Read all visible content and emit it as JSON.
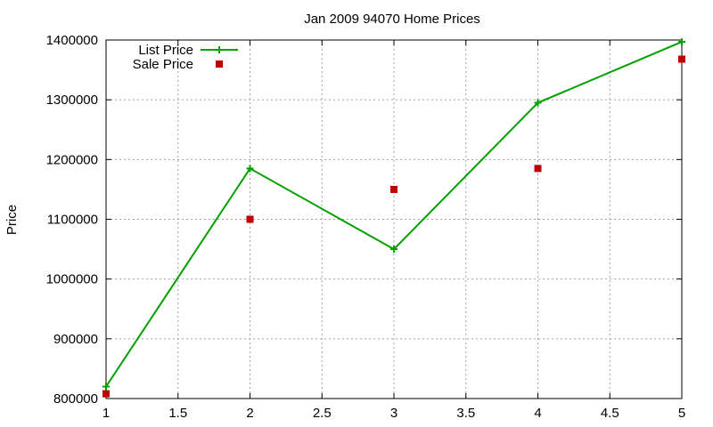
{
  "chart_data": {
    "type": "line",
    "title": "Jan 2009 94070 Home Prices",
    "xlabel": "",
    "ylabel": "Price",
    "xlim": [
      1,
      5
    ],
    "ylim": [
      800000,
      1400000
    ],
    "x_ticks": [
      1,
      1.5,
      2,
      2.5,
      3,
      3.5,
      4,
      4.5,
      5
    ],
    "x_tick_labels": [
      "1",
      "1.5",
      "2",
      "2.5",
      "3",
      "3.5",
      "4",
      "4.5",
      "5"
    ],
    "y_ticks": [
      800000,
      900000,
      1000000,
      1100000,
      1200000,
      1300000,
      1400000
    ],
    "y_tick_labels": [
      "800000",
      "900000",
      "1000000",
      "1100000",
      "1200000",
      "1300000",
      "1400000"
    ],
    "grid": true,
    "legend_position": "top-left",
    "series": [
      {
        "name": "List Price",
        "style": "linespoints",
        "marker": "plus",
        "color": "#00a000",
        "x": [
          1,
          2,
          3,
          4,
          5
        ],
        "values": [
          820000,
          1185000,
          1050000,
          1295000,
          1397000
        ]
      },
      {
        "name": "Sale Price",
        "style": "points",
        "marker": "square",
        "color": "#c00000",
        "x": [
          1,
          2,
          3,
          4,
          5
        ],
        "values": [
          808000,
          1100000,
          1150000,
          1185000,
          1368000
        ]
      }
    ]
  }
}
